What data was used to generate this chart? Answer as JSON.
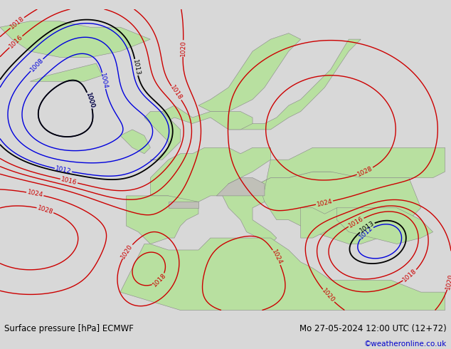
{
  "title_left": "Surface pressure [hPa] ECMWF",
  "title_right": "Mo 27-05-2024 12:00 UTC (12+72)",
  "credit": "©weatheronline.co.uk",
  "sea_color": "#e8e8e8",
  "land_color": "#b8e0a0",
  "land_color2": "#c8eab0",
  "gray_land": "#c0c0b8",
  "footer_bg": "#d8d8d8",
  "footer_text_color": "#000000",
  "credit_color": "#0000cc",
  "figsize": [
    6.34,
    4.9
  ],
  "dpi": 100,
  "black_levels": [
    1000,
    1013
  ],
  "red_levels": [
    1016,
    1018,
    1020,
    1024,
    1028
  ],
  "blue_levels": [
    1000,
    1004,
    1008,
    1012
  ]
}
